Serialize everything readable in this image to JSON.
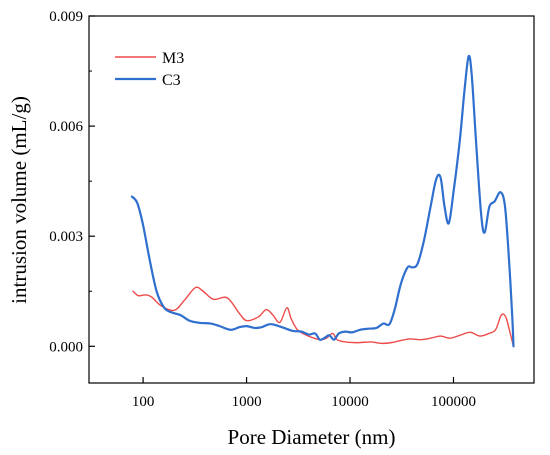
{
  "chart_data": {
    "type": "line",
    "xlabel": "Pore Diameter (nm)",
    "ylabel": "intrusion volume (mL/g)",
    "xscale": "log",
    "xlim": [
      30,
      600000
    ],
    "ylim": [
      -0.001,
      0.009
    ],
    "x_ticks": [
      {
        "value": 100,
        "label": "100"
      },
      {
        "value": 1000,
        "label": "1000"
      },
      {
        "value": 10000,
        "label": "10000"
      },
      {
        "value": 100000,
        "label": "100000"
      }
    ],
    "y_ticks": [
      {
        "value": 0.0,
        "label": "0.000"
      },
      {
        "value": 0.003,
        "label": "0.003"
      },
      {
        "value": 0.006,
        "label": "0.006"
      },
      {
        "value": 0.009,
        "label": "0.009"
      }
    ],
    "grid": false,
    "legend_position": "top-left",
    "series": [
      {
        "name": "M3",
        "color": "#ee4b4b",
        "points": [
          [
            80,
            0.0015
          ],
          [
            90,
            0.00138
          ],
          [
            105,
            0.0014
          ],
          [
            120,
            0.00135
          ],
          [
            150,
            0.0011
          ],
          [
            200,
            0.00098
          ],
          [
            250,
            0.00125
          ],
          [
            320,
            0.0016
          ],
          [
            380,
            0.0015
          ],
          [
            480,
            0.00128
          ],
          [
            650,
            0.00132
          ],
          [
            850,
            0.0009
          ],
          [
            1000,
            0.0007
          ],
          [
            1300,
            0.0008
          ],
          [
            1550,
            0.001
          ],
          [
            1800,
            0.00085
          ],
          [
            2100,
            0.00065
          ],
          [
            2450,
            0.00105
          ],
          [
            2700,
            0.00075
          ],
          [
            3100,
            0.00045
          ],
          [
            3800,
            0.0003
          ],
          [
            4500,
            0.00022
          ],
          [
            5200,
            0.00018
          ],
          [
            5900,
            0.00022
          ],
          [
            6800,
            0.00035
          ],
          [
            7500,
            0.00018
          ],
          [
            9000,
            0.00012
          ],
          [
            12000,
            0.0001
          ],
          [
            16000,
            0.00012
          ],
          [
            20000,
            8e-05
          ],
          [
            25000,
            0.0001
          ],
          [
            30000,
            0.00015
          ],
          [
            38000,
            0.0002
          ],
          [
            48000,
            0.00018
          ],
          [
            60000,
            0.00022
          ],
          [
            75000,
            0.00028
          ],
          [
            92000,
            0.00022
          ],
          [
            115000,
            0.0003
          ],
          [
            145000,
            0.00038
          ],
          [
            180000,
            0.00028
          ],
          [
            220000,
            0.00035
          ],
          [
            255000,
            0.00045
          ],
          [
            290000,
            0.00085
          ],
          [
            320000,
            0.0008
          ],
          [
            350000,
            0.0004
          ],
          [
            380000,
            0.0
          ]
        ]
      },
      {
        "name": "C3",
        "color": "#2f6fce",
        "points": [
          [
            78,
            0.00408
          ],
          [
            88,
            0.0039
          ],
          [
            100,
            0.0033
          ],
          [
            115,
            0.0024
          ],
          [
            135,
            0.0015
          ],
          [
            160,
            0.00105
          ],
          [
            190,
            0.00092
          ],
          [
            230,
            0.00085
          ],
          [
            280,
            0.0007
          ],
          [
            350,
            0.00064
          ],
          [
            450,
            0.00062
          ],
          [
            550,
            0.00055
          ],
          [
            700,
            0.00045
          ],
          [
            850,
            0.00052
          ],
          [
            1000,
            0.00055
          ],
          [
            1200,
            0.0005
          ],
          [
            1400,
            0.00052
          ],
          [
            1650,
            0.0006
          ],
          [
            1900,
            0.00058
          ],
          [
            2300,
            0.0005
          ],
          [
            2800,
            0.00042
          ],
          [
            3400,
            0.0004
          ],
          [
            4000,
            0.00032
          ],
          [
            4600,
            0.00035
          ],
          [
            5100,
            0.00018
          ],
          [
            5600,
            0.00022
          ],
          [
            6300,
            0.0003
          ],
          [
            7000,
            0.00018
          ],
          [
            7800,
            0.00035
          ],
          [
            9000,
            0.0004
          ],
          [
            10500,
            0.00038
          ],
          [
            12500,
            0.00045
          ],
          [
            15000,
            0.00048
          ],
          [
            18000,
            0.0005
          ],
          [
            21000,
            0.00062
          ],
          [
            24000,
            0.0006
          ],
          [
            27000,
            0.001
          ],
          [
            31000,
            0.0017
          ],
          [
            36000,
            0.00215
          ],
          [
            40000,
            0.00215
          ],
          [
            45000,
            0.00225
          ],
          [
            52000,
            0.0029
          ],
          [
            60000,
            0.0038
          ],
          [
            68000,
            0.00455
          ],
          [
            75000,
            0.0046
          ],
          [
            82000,
            0.0038
          ],
          [
            90000,
            0.00335
          ],
          [
            100000,
            0.0042
          ],
          [
            115000,
            0.0056
          ],
          [
            128000,
            0.007
          ],
          [
            140000,
            0.0079
          ],
          [
            150000,
            0.0074
          ],
          [
            165000,
            0.0056
          ],
          [
            185000,
            0.0036
          ],
          [
            200000,
            0.0031
          ],
          [
            222000,
            0.0038
          ],
          [
            250000,
            0.00395
          ],
          [
            285000,
            0.0042
          ],
          [
            315000,
            0.0038
          ],
          [
            345000,
            0.0023
          ],
          [
            370000,
            0.0008
          ],
          [
            380000,
            0.0
          ]
        ]
      }
    ]
  }
}
